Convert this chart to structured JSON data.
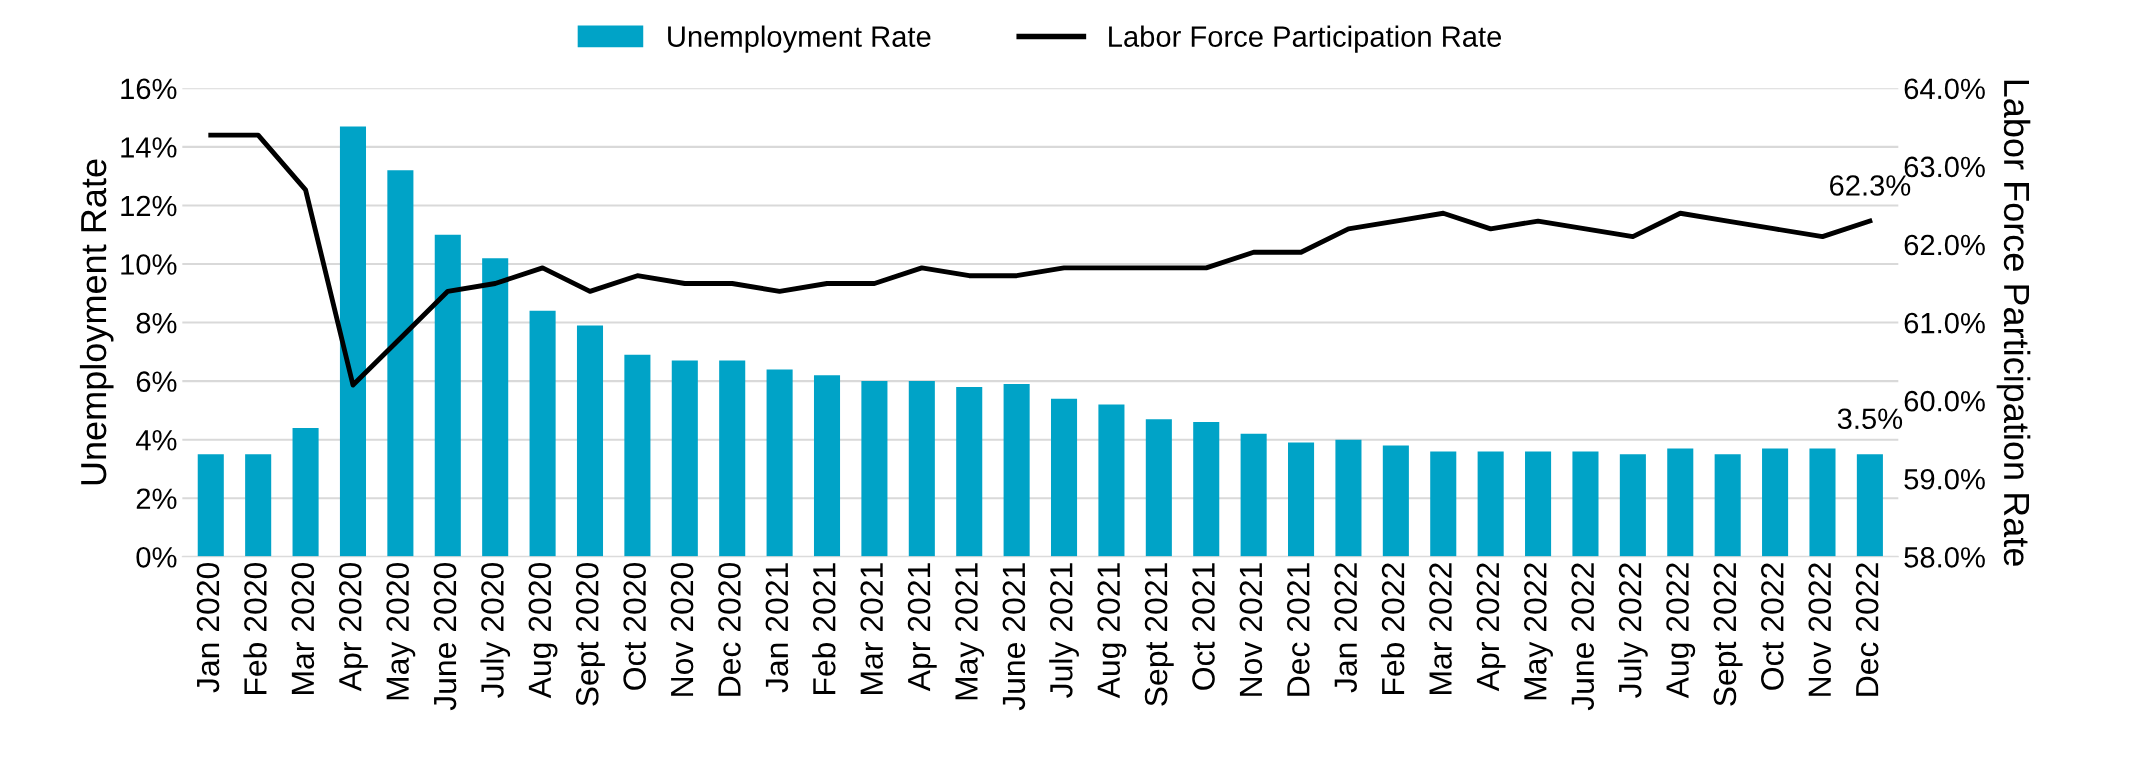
{
  "chart_data": {
    "type": "bar",
    "categories": [
      "Jan 2020",
      "Feb 2020",
      "Mar 2020",
      "Apr 2020",
      "May 2020",
      "June 2020",
      "July 2020",
      "Aug 2020",
      "Sept 2020",
      "Oct 2020",
      "Nov 2020",
      "Dec 2020",
      "Jan 2021",
      "Feb 2021",
      "Mar 2021",
      "Apr 2021",
      "May 2021",
      "June 2021",
      "July 2021",
      "Aug 2021",
      "Sept 2021",
      "Oct 2021",
      "Nov 2021",
      "Dec 2021",
      "Jan 2022",
      "Feb 2022",
      "Mar 2022",
      "Apr 2022",
      "May 2022",
      "June 2022",
      "July 2022",
      "Aug 2022",
      "Sept 2022",
      "Oct 2022",
      "Nov 2022",
      "Dec 2022"
    ],
    "series": [
      {
        "name": "Unemployment Rate",
        "color": "#00a3c7",
        "values": [
          3.5,
          3.5,
          4.4,
          14.7,
          13.2,
          11.0,
          10.2,
          8.4,
          7.9,
          6.9,
          6.7,
          6.7,
          6.4,
          6.2,
          6.0,
          6.0,
          5.8,
          5.9,
          5.4,
          5.2,
          4.7,
          4.6,
          4.2,
          3.9,
          4.0,
          3.8,
          3.6,
          3.6,
          3.6,
          3.6,
          3.5,
          3.7,
          3.5,
          3.7,
          3.7,
          3.5
        ],
        "value_labels": [
          null,
          null,
          null,
          null,
          null,
          null,
          null,
          null,
          null,
          null,
          null,
          null,
          null,
          null,
          null,
          null,
          null,
          null,
          null,
          null,
          null,
          null,
          null,
          null,
          null,
          null,
          null,
          null,
          null,
          null,
          null,
          null,
          null,
          null,
          null,
          "3.5%"
        ]
      },
      {
        "name": "Labor Force Participation Rate",
        "type": "line",
        "axis": "y2",
        "color": "#000000",
        "values": [
          63.4,
          63.4,
          62.7,
          60.2,
          60.8,
          61.4,
          61.5,
          61.7,
          61.4,
          61.6,
          61.5,
          61.5,
          61.4,
          61.5,
          61.5,
          61.7,
          61.6,
          61.6,
          61.7,
          61.7,
          61.7,
          61.7,
          61.9,
          61.9,
          62.2,
          62.3,
          62.4,
          62.2,
          62.3,
          62.2,
          62.1,
          62.4,
          62.3,
          62.2,
          62.1,
          62.3
        ],
        "value_labels": [
          null,
          null,
          null,
          null,
          null,
          null,
          null,
          null,
          null,
          null,
          null,
          null,
          null,
          null,
          null,
          null,
          null,
          null,
          null,
          null,
          null,
          null,
          null,
          null,
          null,
          null,
          null,
          null,
          null,
          null,
          null,
          null,
          null,
          null,
          null,
          "62.3%"
        ]
      }
    ],
    "ylabel": "Unemployment Rate",
    "y2label": "Labor Force Participation Rate",
    "ylim": [
      0,
      16
    ],
    "yticks": [
      {
        "value": 0,
        "label": "0%"
      },
      {
        "value": 2,
        "label": "2%"
      },
      {
        "value": 4,
        "label": "4%"
      },
      {
        "value": 6,
        "label": "6%"
      },
      {
        "value": 8,
        "label": "8%"
      },
      {
        "value": 10,
        "label": "10%"
      },
      {
        "value": 12,
        "label": "12%"
      },
      {
        "value": 14,
        "label": "14%"
      },
      {
        "value": 16,
        "label": "16%"
      }
    ],
    "y2lim": [
      58,
      64
    ],
    "y2ticks": [
      {
        "value": 58,
        "label": "58.0%"
      },
      {
        "value": 59,
        "label": "59.0%"
      },
      {
        "value": 60,
        "label": "60.0%"
      },
      {
        "value": 61,
        "label": "61.0%"
      },
      {
        "value": 62,
        "label": "62.0%"
      },
      {
        "value": 63,
        "label": "63.0%"
      },
      {
        "value": 64,
        "label": "64.0%"
      }
    ],
    "grid": "y",
    "legend": "top",
    "marker": "none",
    "line_style": "solid"
  }
}
